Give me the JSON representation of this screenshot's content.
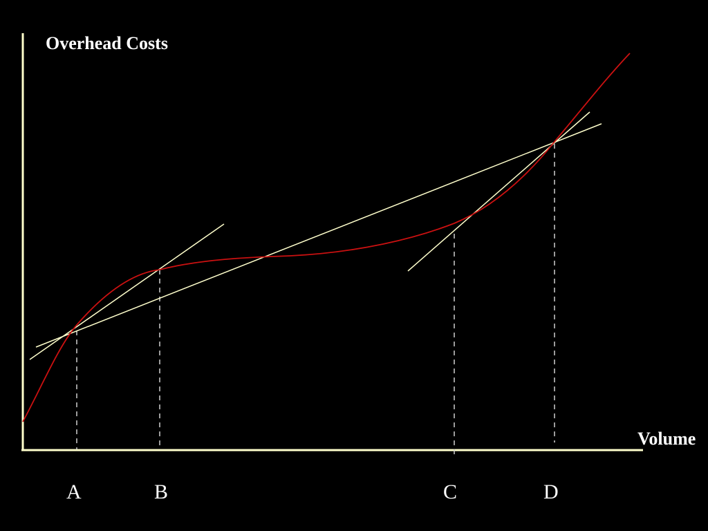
{
  "colors": {
    "background": "#000000",
    "axis": "#ffffcc",
    "cost_curve": "#cc1111",
    "secant_lines": "#ffffcc",
    "dashed_markers": "#d0d0d0",
    "text": "#ffffff"
  },
  "labels": {
    "y_axis": "Overhead Costs",
    "x_axis": "Volume"
  },
  "points": [
    {
      "id": "a",
      "label": "A"
    },
    {
      "id": "b",
      "label": "B"
    },
    {
      "id": "c",
      "label": "C"
    },
    {
      "id": "d",
      "label": "D"
    }
  ]
}
